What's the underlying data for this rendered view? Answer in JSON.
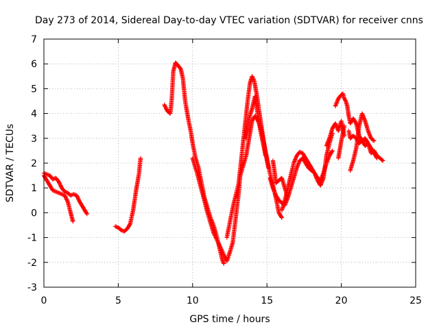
{
  "chart_data": {
    "type": "scatter",
    "title": "Day 273 of 2014, Sidereal Day-to-day VTEC variation (SDTVAR) for receiver cnns",
    "xlabel": "GPS time / hours",
    "ylabel": "SDTVAR / TECUs",
    "xlim": [
      0,
      25
    ],
    "ylim": [
      -3,
      7
    ],
    "grid": true,
    "marker": "+",
    "color": "#ff0000",
    "x_ticks": [
      0,
      5,
      10,
      15,
      20,
      25
    ],
    "y_ticks": [
      -3,
      -2,
      -1,
      0,
      1,
      2,
      3,
      4,
      5,
      6,
      7
    ],
    "x_tick_labels": [
      "0",
      "5",
      "10",
      "15",
      "20",
      "25"
    ],
    "y_tick_labels": [
      "-3",
      "-2",
      "-1",
      "0",
      "1",
      "2",
      "3",
      "4",
      "5",
      "6",
      "7"
    ],
    "series": [
      {
        "name": "SDTVAR",
        "segments": [
          [
            [
              0.0,
              1.6
            ],
            [
              0.2,
              1.55
            ],
            [
              0.4,
              1.5
            ],
            [
              0.6,
              1.35
            ],
            [
              0.8,
              1.4
            ],
            [
              1.0,
              1.25
            ],
            [
              1.2,
              1.0
            ],
            [
              1.4,
              0.85
            ],
            [
              1.6,
              0.8
            ],
            [
              1.8,
              0.7
            ],
            [
              2.0,
              0.75
            ],
            [
              2.2,
              0.7
            ],
            [
              2.4,
              0.45
            ],
            [
              2.6,
              0.25
            ],
            [
              2.8,
              0.05
            ],
            [
              2.9,
              -0.05
            ]
          ],
          [
            [
              0.0,
              1.5
            ],
            [
              0.2,
              1.3
            ],
            [
              0.4,
              1.1
            ],
            [
              0.6,
              0.9
            ],
            [
              0.8,
              0.85
            ],
            [
              1.0,
              0.8
            ],
            [
              1.2,
              0.75
            ],
            [
              1.4,
              0.7
            ],
            [
              1.6,
              0.45
            ],
            [
              1.8,
              0.0
            ],
            [
              1.95,
              -0.35
            ]
          ],
          [
            [
              4.8,
              -0.55
            ],
            [
              5.0,
              -0.6
            ],
            [
              5.2,
              -0.7
            ],
            [
              5.4,
              -0.75
            ],
            [
              5.6,
              -0.65
            ],
            [
              5.8,
              -0.45
            ],
            [
              6.0,
              0.1
            ],
            [
              6.2,
              0.9
            ],
            [
              6.4,
              1.6
            ],
            [
              6.5,
              2.2
            ]
          ],
          [
            [
              8.1,
              4.35
            ],
            [
              8.3,
              4.1
            ],
            [
              8.5,
              4.0
            ],
            [
              8.6,
              4.6
            ],
            [
              8.7,
              5.7
            ],
            [
              8.85,
              6.05
            ],
            [
              9.0,
              5.95
            ],
            [
              9.2,
              5.8
            ],
            [
              9.35,
              5.4
            ],
            [
              9.5,
              4.5
            ],
            [
              9.7,
              3.8
            ],
            [
              9.9,
              3.2
            ],
            [
              10.0,
              2.8
            ],
            [
              10.2,
              2.2
            ],
            [
              10.4,
              1.8
            ],
            [
              10.6,
              1.2
            ],
            [
              10.8,
              0.6
            ],
            [
              11.0,
              0.2
            ],
            [
              11.2,
              -0.2
            ],
            [
              11.4,
              -0.5
            ],
            [
              11.6,
              -0.9
            ],
            [
              11.8,
              -1.4
            ],
            [
              12.0,
              -1.9
            ],
            [
              12.1,
              -2.05
            ]
          ],
          [
            [
              10.0,
              2.2
            ],
            [
              10.3,
              1.6
            ],
            [
              10.7,
              0.7
            ],
            [
              11.0,
              0.0
            ],
            [
              11.4,
              -0.8
            ],
            [
              11.8,
              -1.3
            ],
            [
              12.1,
              -1.7
            ],
            [
              12.3,
              -1.95
            ],
            [
              12.5,
              -1.6
            ],
            [
              12.7,
              -1.2
            ],
            [
              12.9,
              -0.2
            ],
            [
              13.1,
              0.8
            ],
            [
              13.2,
              1.5
            ],
            [
              13.4,
              1.9
            ],
            [
              13.6,
              2.3
            ],
            [
              13.8,
              3.0
            ],
            [
              14.0,
              3.7
            ],
            [
              14.2,
              3.9
            ],
            [
              14.4,
              3.7
            ],
            [
              14.6,
              3.4
            ],
            [
              14.8,
              2.8
            ],
            [
              15.0,
              2.2
            ],
            [
              15.2,
              1.6
            ],
            [
              15.4,
              1.1
            ],
            [
              15.6,
              0.6
            ],
            [
              15.8,
              0.0
            ],
            [
              16.0,
              -0.2
            ]
          ],
          [
            [
              12.3,
              -1.0
            ],
            [
              12.5,
              -0.4
            ],
            [
              12.7,
              0.2
            ],
            [
              12.9,
              0.7
            ],
            [
              13.1,
              1.2
            ],
            [
              13.3,
              2.3
            ],
            [
              13.5,
              3.4
            ],
            [
              13.7,
              4.5
            ],
            [
              13.85,
              5.2
            ],
            [
              14.0,
              5.5
            ],
            [
              14.15,
              5.3
            ],
            [
              14.3,
              4.8
            ],
            [
              14.5,
              4.0
            ],
            [
              14.7,
              3.2
            ],
            [
              14.9,
              2.4
            ],
            [
              15.1,
              1.8
            ]
          ],
          [
            [
              13.6,
              3.0
            ],
            [
              13.8,
              3.8
            ],
            [
              14.0,
              4.2
            ],
            [
              14.2,
              4.7
            ],
            [
              14.3,
              4.3
            ],
            [
              14.5,
              3.5
            ],
            [
              14.7,
              2.9
            ],
            [
              14.9,
              2.3
            ]
          ],
          [
            [
              15.2,
              1.4
            ],
            [
              15.4,
              1.0
            ],
            [
              15.6,
              0.7
            ],
            [
              15.8,
              0.5
            ],
            [
              16.0,
              0.4
            ],
            [
              16.2,
              0.3
            ],
            [
              16.4,
              0.6
            ],
            [
              16.6,
              1.0
            ],
            [
              16.8,
              1.4
            ],
            [
              17.0,
              1.8
            ],
            [
              17.2,
              2.1
            ],
            [
              17.4,
              2.2
            ],
            [
              17.6,
              2.0
            ],
            [
              17.8,
              1.8
            ],
            [
              18.0,
              1.7
            ],
            [
              18.2,
              1.6
            ],
            [
              18.4,
              1.4
            ],
            [
              18.6,
              1.3
            ],
            [
              18.8,
              1.6
            ],
            [
              19.0,
              2.0
            ],
            [
              19.2,
              2.3
            ],
            [
              19.4,
              2.5
            ]
          ],
          [
            [
              16.0,
              0.1
            ],
            [
              16.2,
              0.5
            ],
            [
              16.4,
              1.0
            ],
            [
              16.6,
              1.5
            ],
            [
              16.8,
              2.0
            ],
            [
              17.0,
              2.3
            ],
            [
              17.2,
              2.45
            ],
            [
              17.4,
              2.4
            ],
            [
              17.6,
              2.2
            ],
            [
              17.8,
              2.0
            ],
            [
              18.0,
              1.8
            ],
            [
              18.2,
              1.6
            ],
            [
              18.4,
              1.3
            ],
            [
              18.6,
              1.1
            ],
            [
              18.8,
              1.4
            ],
            [
              19.0,
              2.3
            ],
            [
              19.2,
              2.8
            ],
            [
              19.4,
              3.2
            ]
          ],
          [
            [
              15.4,
              2.1
            ],
            [
              15.5,
              1.7
            ],
            [
              15.6,
              1.2
            ],
            [
              15.8,
              1.3
            ],
            [
              16.0,
              1.4
            ],
            [
              16.2,
              1.0
            ],
            [
              16.4,
              0.6
            ]
          ],
          [
            [
              19.0,
              2.7
            ],
            [
              19.2,
              3.0
            ],
            [
              19.4,
              3.4
            ],
            [
              19.6,
              3.6
            ],
            [
              19.8,
              3.3
            ],
            [
              20.0,
              3.7
            ],
            [
              20.2,
              3.1
            ]
          ],
          [
            [
              19.6,
              4.3
            ],
            [
              19.8,
              4.6
            ],
            [
              20.0,
              4.75
            ],
            [
              20.1,
              4.8
            ],
            [
              20.2,
              4.6
            ],
            [
              20.3,
              4.5
            ],
            [
              20.4,
              4.3
            ],
            [
              20.5,
              3.9
            ],
            [
              20.6,
              3.6
            ],
            [
              20.8,
              3.8
            ],
            [
              21.0,
              3.6
            ],
            [
              21.2,
              3.1
            ],
            [
              21.4,
              2.9
            ],
            [
              21.6,
              2.7
            ],
            [
              21.8,
              2.8
            ],
            [
              22.0,
              2.4
            ],
            [
              22.2,
              2.5
            ],
            [
              22.4,
              2.3
            ],
            [
              22.6,
              2.2
            ],
            [
              22.8,
              2.1
            ]
          ],
          [
            [
              20.5,
              3.3
            ],
            [
              20.6,
              3.0
            ],
            [
              20.8,
              3.1
            ],
            [
              21.0,
              3.0
            ],
            [
              21.2,
              2.8
            ],
            [
              21.4,
              2.9
            ],
            [
              21.6,
              3.0
            ],
            [
              21.8,
              2.8
            ],
            [
              22.0,
              2.6
            ],
            [
              22.2,
              2.4
            ],
            [
              22.4,
              2.2
            ]
          ],
          [
            [
              20.6,
              1.7
            ],
            [
              20.8,
              2.1
            ],
            [
              21.0,
              2.6
            ],
            [
              21.2,
              3.5
            ],
            [
              21.4,
              4.0
            ],
            [
              21.6,
              3.7
            ],
            [
              21.8,
              3.3
            ],
            [
              22.0,
              3.0
            ],
            [
              22.2,
              2.9
            ]
          ],
          [
            [
              19.8,
              2.2
            ],
            [
              20.0,
              2.9
            ],
            [
              20.2,
              3.5
            ]
          ]
        ]
      }
    ]
  }
}
